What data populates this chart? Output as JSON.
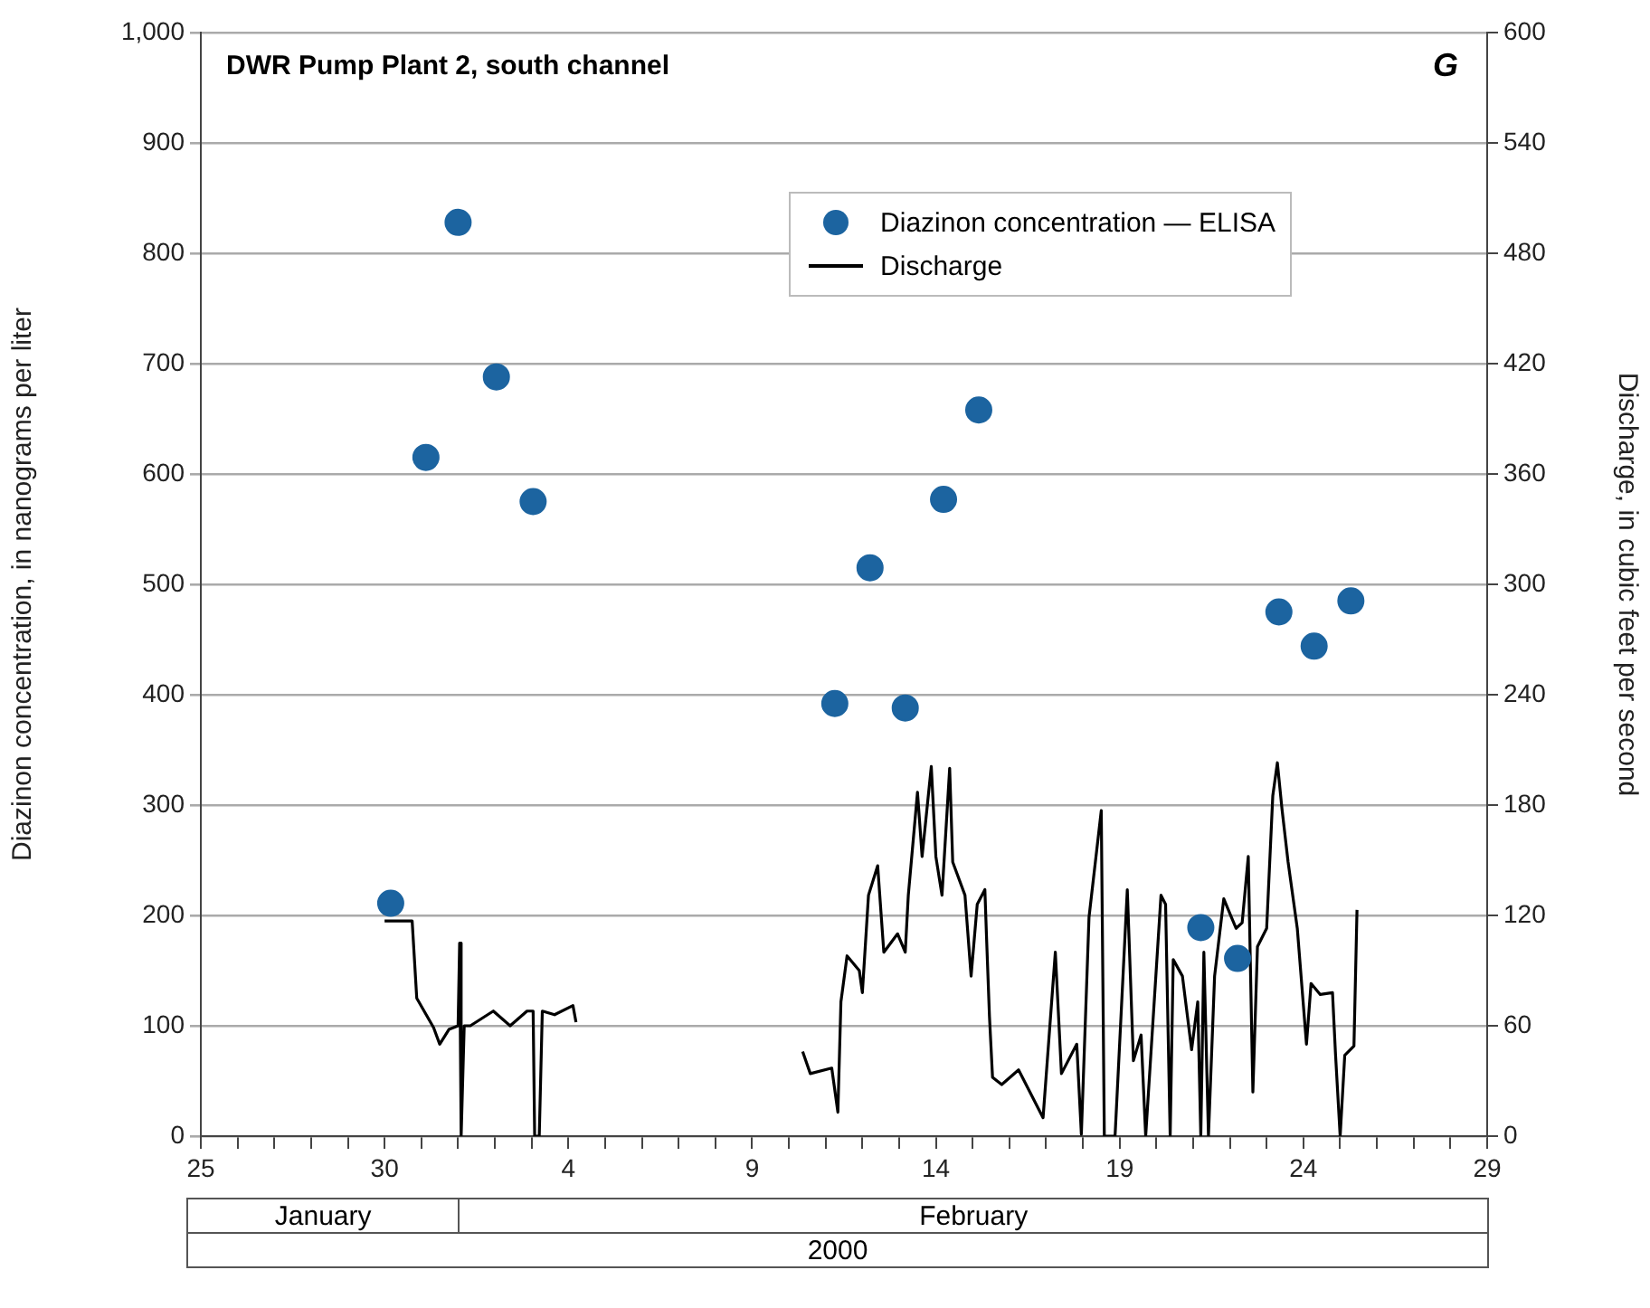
{
  "chart_data": {
    "type": "scatter",
    "title": "DWR Pump Plant 2, south channel",
    "ylabel": "Diazinon concentration, in nanograms per liter",
    "y2label": "Discharge, in cubic feet per second",
    "annotations": [
      "G",
      "January",
      "February",
      "2000"
    ],
    "legend": "top right",
    "grid": "y",
    "marker": "circle",
    "xlim": [
      "2000-01-25",
      "2000-02-29"
    ],
    "xticks": [
      {
        "value": "2000-01-25",
        "label": "25"
      },
      {
        "value": "2000-01-26",
        "label": null
      },
      {
        "value": "2000-01-27",
        "label": null
      },
      {
        "value": "2000-01-28",
        "label": null
      },
      {
        "value": "2000-01-29",
        "label": null
      },
      {
        "value": "2000-01-30",
        "label": "30"
      },
      {
        "value": "2000-01-31",
        "label": null
      },
      {
        "value": "2000-02-01",
        "label": null
      },
      {
        "value": "2000-02-02",
        "label": null
      },
      {
        "value": "2000-02-03",
        "label": null
      },
      {
        "value": "2000-02-04",
        "label": "4"
      },
      {
        "value": "2000-02-05",
        "label": null
      },
      {
        "value": "2000-02-06",
        "label": null
      },
      {
        "value": "2000-02-07",
        "label": null
      },
      {
        "value": "2000-02-08",
        "label": null
      },
      {
        "value": "2000-02-09",
        "label": "9"
      },
      {
        "value": "2000-02-10",
        "label": null
      },
      {
        "value": "2000-02-11",
        "label": null
      },
      {
        "value": "2000-02-12",
        "label": null
      },
      {
        "value": "2000-02-13",
        "label": null
      },
      {
        "value": "2000-02-14",
        "label": "14"
      },
      {
        "value": "2000-02-15",
        "label": null
      },
      {
        "value": "2000-02-16",
        "label": null
      },
      {
        "value": "2000-02-17",
        "label": null
      },
      {
        "value": "2000-02-18",
        "label": null
      },
      {
        "value": "2000-02-19",
        "label": "19"
      },
      {
        "value": "2000-02-20",
        "label": null
      },
      {
        "value": "2000-02-21",
        "label": null
      },
      {
        "value": "2000-02-22",
        "label": null
      },
      {
        "value": "2000-02-23",
        "label": null
      },
      {
        "value": "2000-02-24",
        "label": "24"
      },
      {
        "value": "2000-02-25",
        "label": null
      },
      {
        "value": "2000-02-26",
        "label": null
      },
      {
        "value": "2000-02-27",
        "label": null
      },
      {
        "value": "2000-02-28",
        "label": null
      },
      {
        "value": "2000-02-29",
        "label": "29"
      }
    ],
    "ylim": [
      0,
      1000
    ],
    "yticks": [
      0,
      100,
      200,
      300,
      400,
      500,
      600,
      700,
      800,
      900,
      {
        "value": 1000,
        "label": "1,000"
      }
    ],
    "y2lim": [
      0,
      600
    ],
    "y2ticks": [
      0,
      60,
      120,
      180,
      240,
      300,
      360,
      420,
      480,
      540,
      600
    ],
    "series": [
      {
        "name": "Diazinon concentration — ELISA",
        "color": "#1c64a0",
        "x": [
          "2000-01-30T04:00",
          "2000-01-31T03:00",
          "2000-02-01T00:00",
          "2000-02-02T01:00",
          "2000-02-03T01:00",
          "2000-02-11T06:00",
          "2000-02-12T05:00",
          "2000-02-13T04:00",
          "2000-02-14T05:00",
          "2000-02-15T04:00",
          "2000-02-21T05:00",
          "2000-02-22T05:00",
          "2000-02-23T08:00",
          "2000-02-24T07:00",
          "2000-02-25T07:00"
        ],
        "values": [
          211,
          615,
          828,
          688,
          575,
          392,
          515,
          388,
          577,
          658,
          189,
          161,
          475,
          444,
          485
        ]
      },
      {
        "name": "Discharge",
        "type": "line",
        "axis": "y2",
        "color": "#000000",
        "line_style": "solid",
        "marker": "none",
        "x": [
          "2000-01-30T00:00",
          "2000-01-30T18:00",
          "2000-01-30T21:00",
          "2000-01-31T08:00",
          "2000-01-31T12:00",
          "2000-01-31T18:00",
          "2000-02-01T00:00",
          "2000-02-01T01:00",
          "2000-02-01T02:00",
          "2000-02-01T04:00",
          "2000-02-01T08:00",
          "2000-02-01T23:00",
          "2000-02-02T10:00",
          "2000-02-02T21:00",
          "2000-02-03T01:00",
          "2000-02-03T02:00",
          "2000-02-03T05:00",
          "2000-02-03T07:00",
          "2000-02-03T15:00",
          "2000-02-04T03:00",
          "2000-02-04T05:00",
          "2000-02-07T00:00",
          "2000-02-10T09:00",
          "2000-02-10T14:00",
          "2000-02-11T04:00",
          "2000-02-11T08:00",
          "2000-02-11T10:00",
          "2000-02-11T14:00",
          "2000-02-11T22:00",
          "2000-02-12T00:00",
          "2000-02-12T04:00",
          "2000-02-12T10:00",
          "2000-02-12T14:00",
          "2000-02-12T23:00",
          "2000-02-13T04:00",
          "2000-02-13T06:00",
          "2000-02-13T09:00",
          "2000-02-13T12:00",
          "2000-02-13T15:00",
          "2000-02-13T21:00",
          "2000-02-14T00:00",
          "2000-02-14T04:00",
          "2000-02-14T09:00",
          "2000-02-14T11:00",
          "2000-02-14T19:00",
          "2000-02-14T23:00",
          "2000-02-15T03:00",
          "2000-02-15T08:00",
          "2000-02-15T09:00",
          "2000-02-15T11:00",
          "2000-02-15T13:00",
          "2000-02-15T19:00",
          "2000-02-16T06:00",
          "2000-02-16T22:00",
          "2000-02-17T06:00",
          "2000-02-17T10:00",
          "2000-02-17T20:00",
          "2000-02-17T23:00",
          "2000-02-18T04:00",
          "2000-02-18T12:00",
          "2000-02-18T14:00",
          "2000-02-18T21:00",
          "2000-02-19T05:00",
          "2000-02-19T09:00",
          "2000-02-19T14:00",
          "2000-02-19T17:00",
          "2000-02-20T03:00",
          "2000-02-20T06:00",
          "2000-02-20T09:00",
          "2000-02-20T11:00",
          "2000-02-20T17:00",
          "2000-02-20T23:00",
          "2000-02-21T03:00",
          "2000-02-21T05:00",
          "2000-02-21T07:00",
          "2000-02-21T10:00",
          "2000-02-21T14:00",
          "2000-02-21T20:00",
          "2000-02-22T04:00",
          "2000-02-22T08:00",
          "2000-02-22T12:00",
          "2000-02-22T15:00",
          "2000-02-22T18:00",
          "2000-02-23T00:00",
          "2000-02-23T04:00",
          "2000-02-23T07:00",
          "2000-02-23T10:00",
          "2000-02-23T14:00",
          "2000-02-23T20:00",
          "2000-02-24T02:00",
          "2000-02-24T05:00",
          "2000-02-24T11:00",
          "2000-02-24T19:00",
          "2000-02-24T21:00",
          "2000-02-25T00:00",
          "2000-02-25T03:00",
          "2000-02-25T09:00",
          "2000-02-25T11:00"
        ],
        "values": [
          117,
          117,
          75,
          59,
          50,
          58,
          60,
          105,
          0,
          60,
          60,
          68,
          60,
          68,
          68,
          0,
          0,
          68,
          66,
          71,
          62,
          null,
          46,
          34,
          37,
          13,
          73,
          98,
          90,
          78,
          131,
          147,
          100,
          110,
          100,
          131,
          159,
          187,
          152,
          201,
          152,
          131,
          200,
          149,
          131,
          87,
          126,
          134,
          110,
          65,
          32,
          28,
          36,
          10,
          100,
          34,
          50,
          1,
          119,
          177,
          0,
          0,
          134,
          41,
          55,
          0,
          131,
          126,
          0,
          96,
          87,
          47,
          73,
          0,
          100,
          0,
          87,
          129,
          113,
          116,
          152,
          24,
          103,
          113,
          185,
          203,
          178,
          149,
          113,
          50,
          83,
          77,
          78,
          44,
          0,
          44,
          49,
          123
        ]
      }
    ]
  }
}
